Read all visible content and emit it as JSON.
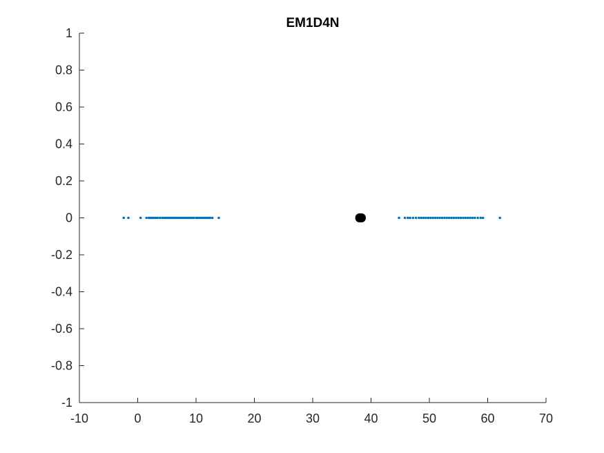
{
  "chart_data": {
    "type": "scatter",
    "title": "EM1D4N",
    "xlabel": "",
    "ylabel": "",
    "xlim": [
      -10,
      70
    ],
    "ylim": [
      -1,
      1
    ],
    "xticks": [
      -10,
      0,
      10,
      20,
      30,
      40,
      50,
      60,
      70
    ],
    "xtick_labels": [
      "-10",
      "0",
      "10",
      "20",
      "30",
      "40",
      "50",
      "60",
      "70"
    ],
    "yticks": [
      -1,
      -0.8,
      -0.6,
      -0.4,
      -0.2,
      0,
      0.2,
      0.4,
      0.6,
      0.8,
      1
    ],
    "ytick_labels": [
      "-1",
      "-0.8",
      "-0.6",
      "-0.4",
      "-0.2",
      "0",
      "0.2",
      "0.4",
      "0.6",
      "0.8",
      "1"
    ],
    "grid": false,
    "series": [
      {
        "color": "#0072BD",
        "marker": "small-dot",
        "x": [
          -2.4,
          -1.6,
          0.5,
          1.5,
          1.9,
          2.2,
          2.5,
          2.8,
          3.1,
          3.4,
          3.8,
          4.2,
          4.5,
          4.8,
          5.1,
          5.4,
          5.7,
          6.0,
          6.3,
          6.6,
          6.9,
          7.2,
          7.5,
          7.8,
          8.1,
          8.4,
          8.7,
          9.0,
          9.3,
          9.6,
          10.0,
          10.3,
          10.6,
          10.9,
          11.2,
          11.5,
          11.8,
          12.1,
          12.4,
          12.8,
          13.9,
          44.8,
          45.8,
          46.3,
          46.7,
          47.2,
          47.7,
          48.2,
          48.6,
          49.0,
          49.4,
          49.8,
          50.2,
          50.6,
          51.0,
          51.4,
          51.8,
          52.2,
          52.6,
          53.0,
          53.4,
          53.8,
          54.2,
          54.6,
          55.0,
          55.4,
          55.8,
          56.2,
          56.6,
          57.0,
          57.4,
          57.8,
          58.3,
          58.8,
          59.2,
          62.1
        ],
        "y": [
          0,
          0,
          0,
          0,
          0,
          0,
          0,
          0,
          0,
          0,
          0,
          0,
          0,
          0,
          0,
          0,
          0,
          0,
          0,
          0,
          0,
          0,
          0,
          0,
          0,
          0,
          0,
          0,
          0,
          0,
          0,
          0,
          0,
          0,
          0,
          0,
          0,
          0,
          0,
          0,
          0,
          0,
          0,
          0,
          0,
          0,
          0,
          0,
          0,
          0,
          0,
          0,
          0,
          0,
          0,
          0,
          0,
          0,
          0,
          0,
          0,
          0,
          0,
          0,
          0,
          0,
          0,
          0,
          0,
          0,
          0,
          0,
          0,
          0,
          0,
          0
        ]
      },
      {
        "color": "#000000",
        "marker": "large-filled-circle",
        "x": [
          38.0,
          38.2,
          38.4
        ],
        "y": [
          0,
          0,
          0
        ]
      }
    ]
  }
}
